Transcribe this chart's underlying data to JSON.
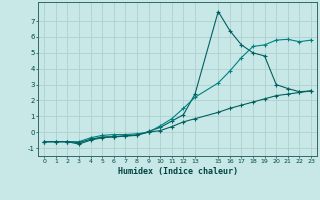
{
  "xlabel": "Humidex (Indice chaleur)",
  "bg_color": "#c8e8e8",
  "grid_color": "#b0d0d0",
  "line_color1": "#006060",
  "line_color2": "#008080",
  "xlim": [
    -0.5,
    23.5
  ],
  "ylim": [
    -1.5,
    8.2
  ],
  "yticks": [
    -1,
    0,
    1,
    2,
    3,
    4,
    5,
    6,
    7
  ],
  "xticks": [
    0,
    1,
    2,
    3,
    4,
    5,
    6,
    7,
    8,
    9,
    10,
    11,
    12,
    13,
    15,
    16,
    17,
    18,
    19,
    20,
    21,
    22,
    23
  ],
  "xtick_labels": [
    "0",
    "1",
    "2",
    "3",
    "4",
    "5",
    "6",
    "7",
    "8",
    "9",
    "10",
    "11",
    "12",
    "13",
    "15",
    "16",
    "17",
    "18",
    "19",
    "20",
    "21",
    "22",
    "23"
  ],
  "series_peak_x": [
    0,
    1,
    2,
    3,
    4,
    5,
    6,
    7,
    8,
    9,
    10,
    11,
    12,
    13,
    15,
    16,
    17,
    18,
    19,
    20,
    21,
    22,
    23
  ],
  "series_peak_y": [
    -0.6,
    -0.6,
    -0.6,
    -0.75,
    -0.5,
    -0.35,
    -0.3,
    -0.25,
    -0.2,
    0.05,
    0.3,
    0.7,
    1.1,
    2.4,
    7.6,
    6.4,
    5.5,
    5.0,
    4.8,
    3.0,
    2.75,
    2.55,
    2.6
  ],
  "series_upper_x": [
    0,
    1,
    2,
    3,
    4,
    5,
    6,
    7,
    8,
    9,
    10,
    11,
    12,
    13,
    15,
    16,
    17,
    18,
    19,
    20,
    21,
    22,
    23
  ],
  "series_upper_y": [
    -0.6,
    -0.6,
    -0.6,
    -0.6,
    -0.35,
    -0.2,
    -0.15,
    -0.15,
    -0.1,
    0.0,
    0.4,
    0.85,
    1.5,
    2.2,
    3.1,
    3.85,
    4.7,
    5.4,
    5.5,
    5.8,
    5.85,
    5.7,
    5.8
  ],
  "series_lower_x": [
    0,
    1,
    2,
    3,
    4,
    5,
    6,
    7,
    8,
    9,
    10,
    11,
    12,
    13,
    15,
    16,
    17,
    18,
    19,
    20,
    21,
    22,
    23
  ],
  "series_lower_y": [
    -0.6,
    -0.6,
    -0.6,
    -0.65,
    -0.45,
    -0.3,
    -0.28,
    -0.22,
    -0.18,
    0.0,
    0.1,
    0.35,
    0.65,
    0.85,
    1.25,
    1.5,
    1.7,
    1.9,
    2.1,
    2.3,
    2.4,
    2.5,
    2.6
  ]
}
